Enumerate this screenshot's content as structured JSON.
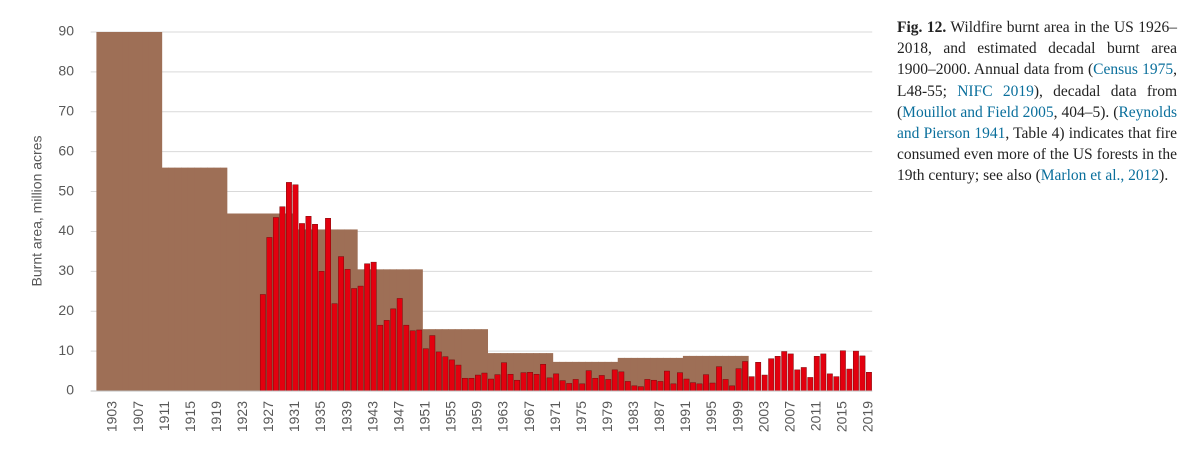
{
  "chart_data": {
    "type": "bar",
    "ylabel": "Burnt area, million acres",
    "categories": [
      null,
      null,
      1903,
      null,
      null,
      null,
      1907,
      null,
      null,
      null,
      1911,
      null,
      null,
      null,
      1915,
      null,
      null,
      null,
      1919,
      null,
      null,
      null,
      1923,
      null,
      null,
      null,
      1927,
      null,
      null,
      null,
      1931,
      null,
      null,
      null,
      1935,
      null,
      null,
      null,
      1939,
      null,
      null,
      null,
      1943,
      null,
      null,
      null,
      1947,
      null,
      null,
      null,
      1951,
      null,
      null,
      null,
      1955,
      null,
      null,
      null,
      1959,
      null,
      null,
      null,
      1963,
      null,
      null,
      null,
      1967,
      null,
      null,
      null,
      1971,
      null,
      null,
      null,
      1975,
      null,
      null,
      null,
      1979,
      null,
      null,
      null,
      1983,
      null,
      null,
      null,
      1987,
      null,
      null,
      null,
      1991,
      null,
      null,
      null,
      1995,
      null,
      null,
      null,
      1999,
      null,
      null,
      null,
      2003,
      null,
      null,
      null,
      2007,
      null,
      null,
      null,
      2011,
      null,
      null,
      null,
      2015,
      null,
      null,
      null,
      2019
    ],
    "series": [
      {
        "color": "#9e6f56",
        "values": [
          90,
          90,
          90,
          90,
          90,
          90,
          90,
          90,
          90,
          90,
          56,
          56,
          56,
          56,
          56,
          56,
          56,
          56,
          56,
          56,
          44.5,
          44.5,
          44.5,
          44.5,
          44.5,
          44.5,
          44.5,
          44.5,
          44.5,
          44.5,
          40.5,
          40.5,
          40.5,
          40.5,
          40.5,
          40.5,
          40.5,
          40.5,
          40.5,
          40.5,
          30.5,
          30.5,
          30.5,
          30.5,
          30.5,
          30.5,
          30.5,
          30.5,
          30.5,
          30.5,
          15.5,
          15.5,
          15.5,
          15.5,
          15.5,
          15.5,
          15.5,
          15.5,
          15.5,
          15.5,
          9.5,
          9.5,
          9.5,
          9.5,
          9.5,
          9.5,
          9.5,
          9.5,
          9.5,
          9.5,
          7.3,
          7.3,
          7.3,
          7.3,
          7.3,
          7.3,
          7.3,
          7.3,
          7.3,
          7.3,
          8.3,
          8.3,
          8.3,
          8.3,
          8.3,
          8.3,
          8.3,
          8.3,
          8.3,
          8.3,
          8.8,
          8.8,
          8.8,
          8.8,
          8.8,
          8.8,
          8.8,
          8.8,
          8.8,
          8.8,
          null,
          null,
          null,
          null,
          null,
          null,
          null,
          null,
          null,
          null,
          null,
          null,
          null,
          null,
          null,
          null,
          null,
          null,
          null
        ]
      },
      {
        "color": "#e3000f",
        "values": [
          null,
          null,
          null,
          null,
          null,
          null,
          null,
          null,
          null,
          null,
          null,
          null,
          null,
          null,
          null,
          null,
          null,
          null,
          null,
          null,
          null,
          null,
          null,
          null,
          null,
          24.2,
          38.5,
          43.5,
          46.2,
          52.3,
          51.7,
          42,
          43.8,
          41.8,
          30,
          43.3,
          21.9,
          33.7,
          30.5,
          25.7,
          26.3,
          31.9,
          32.3,
          16.5,
          17.7,
          20.6,
          23.2,
          16.5,
          15.1,
          15.3,
          10.6,
          13.9,
          9.8,
          8.6,
          7.8,
          6.5,
          3.2,
          3.2,
          4,
          4.5,
          3,
          4.1,
          7.1,
          4.2,
          2.7,
          4.6,
          4.7,
          4.2,
          6.7,
          3.3,
          4.3,
          2.6,
          1.9,
          2.9,
          1.8,
          5.1,
          3.2,
          3.9,
          2.9,
          5.3,
          4.8,
          2.4,
          1.3,
          1.1,
          2.9,
          2.7,
          2.4,
          5,
          1.8,
          4.6,
          3,
          2.1,
          1.8,
          4.1,
          2,
          6.1,
          2.9,
          1.3,
          5.6,
          7.4,
          3.6,
          7.2,
          4,
          8.1,
          8.7,
          9.9,
          9.3,
          5.3,
          5.9,
          3.4,
          8.7,
          9.3,
          4.3,
          3.6,
          10.1,
          5.5,
          10,
          8.8,
          4.7
        ]
      }
    ],
    "ylim": [
      0,
      90
    ],
    "yticks": [
      0,
      10,
      20,
      30,
      40,
      50,
      60,
      70,
      80,
      90
    ],
    "grid": true
  },
  "caption": {
    "parts": [
      {
        "text": "Fig. 12.",
        "bold": true
      },
      {
        "text": " Wildfire burnt area in the US 1926–2018, and estimated decadal burnt area 1900–2000. Annual data from ("
      },
      {
        "text": "Census 1975",
        "link": true
      },
      {
        "text": ", L48-55; "
      },
      {
        "text": "NIFC 2019",
        "link": true
      },
      {
        "text": "), decadal data from ("
      },
      {
        "text": "Mouillot and Field 2005",
        "link": true
      },
      {
        "text": ", 404–5). ("
      },
      {
        "text": "Reynolds and Pierson 1941",
        "link": true
      },
      {
        "text": ", Table 4) indicates that fire consumed even more of the US forests in the 19th century; see also ("
      },
      {
        "text": "Marlon et al., 2012",
        "link": true
      },
      {
        "text": ")."
      }
    ]
  }
}
